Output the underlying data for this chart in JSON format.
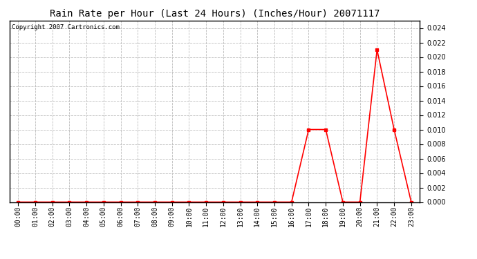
{
  "title": "Rain Rate per Hour (Last 24 Hours) (Inches/Hour) 20071117",
  "copyright_text": "Copyright 2007 Cartronics.com",
  "x_labels": [
    "00:00",
    "01:00",
    "02:00",
    "03:00",
    "04:00",
    "05:00",
    "06:00",
    "07:00",
    "08:00",
    "09:00",
    "10:00",
    "11:00",
    "12:00",
    "13:00",
    "14:00",
    "15:00",
    "16:00",
    "17:00",
    "18:00",
    "19:00",
    "20:00",
    "21:00",
    "22:00",
    "23:00"
  ],
  "y_values": [
    0.0,
    0.0,
    0.0,
    0.0,
    0.0,
    0.0,
    0.0,
    0.0,
    0.0,
    0.0,
    0.0,
    0.0,
    0.0,
    0.0,
    0.0,
    0.0,
    0.0,
    0.01,
    0.01,
    0.0,
    0.0,
    0.021,
    0.01,
    0.0
  ],
  "line_color": "#ff0000",
  "marker": "s",
  "marker_size": 2.5,
  "line_width": 1.2,
  "grid_color": "#bbbbbb",
  "grid_style": "--",
  "bg_color": "#ffffff",
  "ylim": [
    0,
    0.025
  ],
  "yticks": [
    0.0,
    0.002,
    0.004,
    0.006,
    0.008,
    0.01,
    0.012,
    0.014,
    0.016,
    0.018,
    0.02,
    0.022,
    0.024
  ],
  "title_fontsize": 10,
  "copyright_fontsize": 6.5,
  "tick_fontsize": 7,
  "figsize": [
    6.9,
    3.75
  ],
  "dpi": 100
}
